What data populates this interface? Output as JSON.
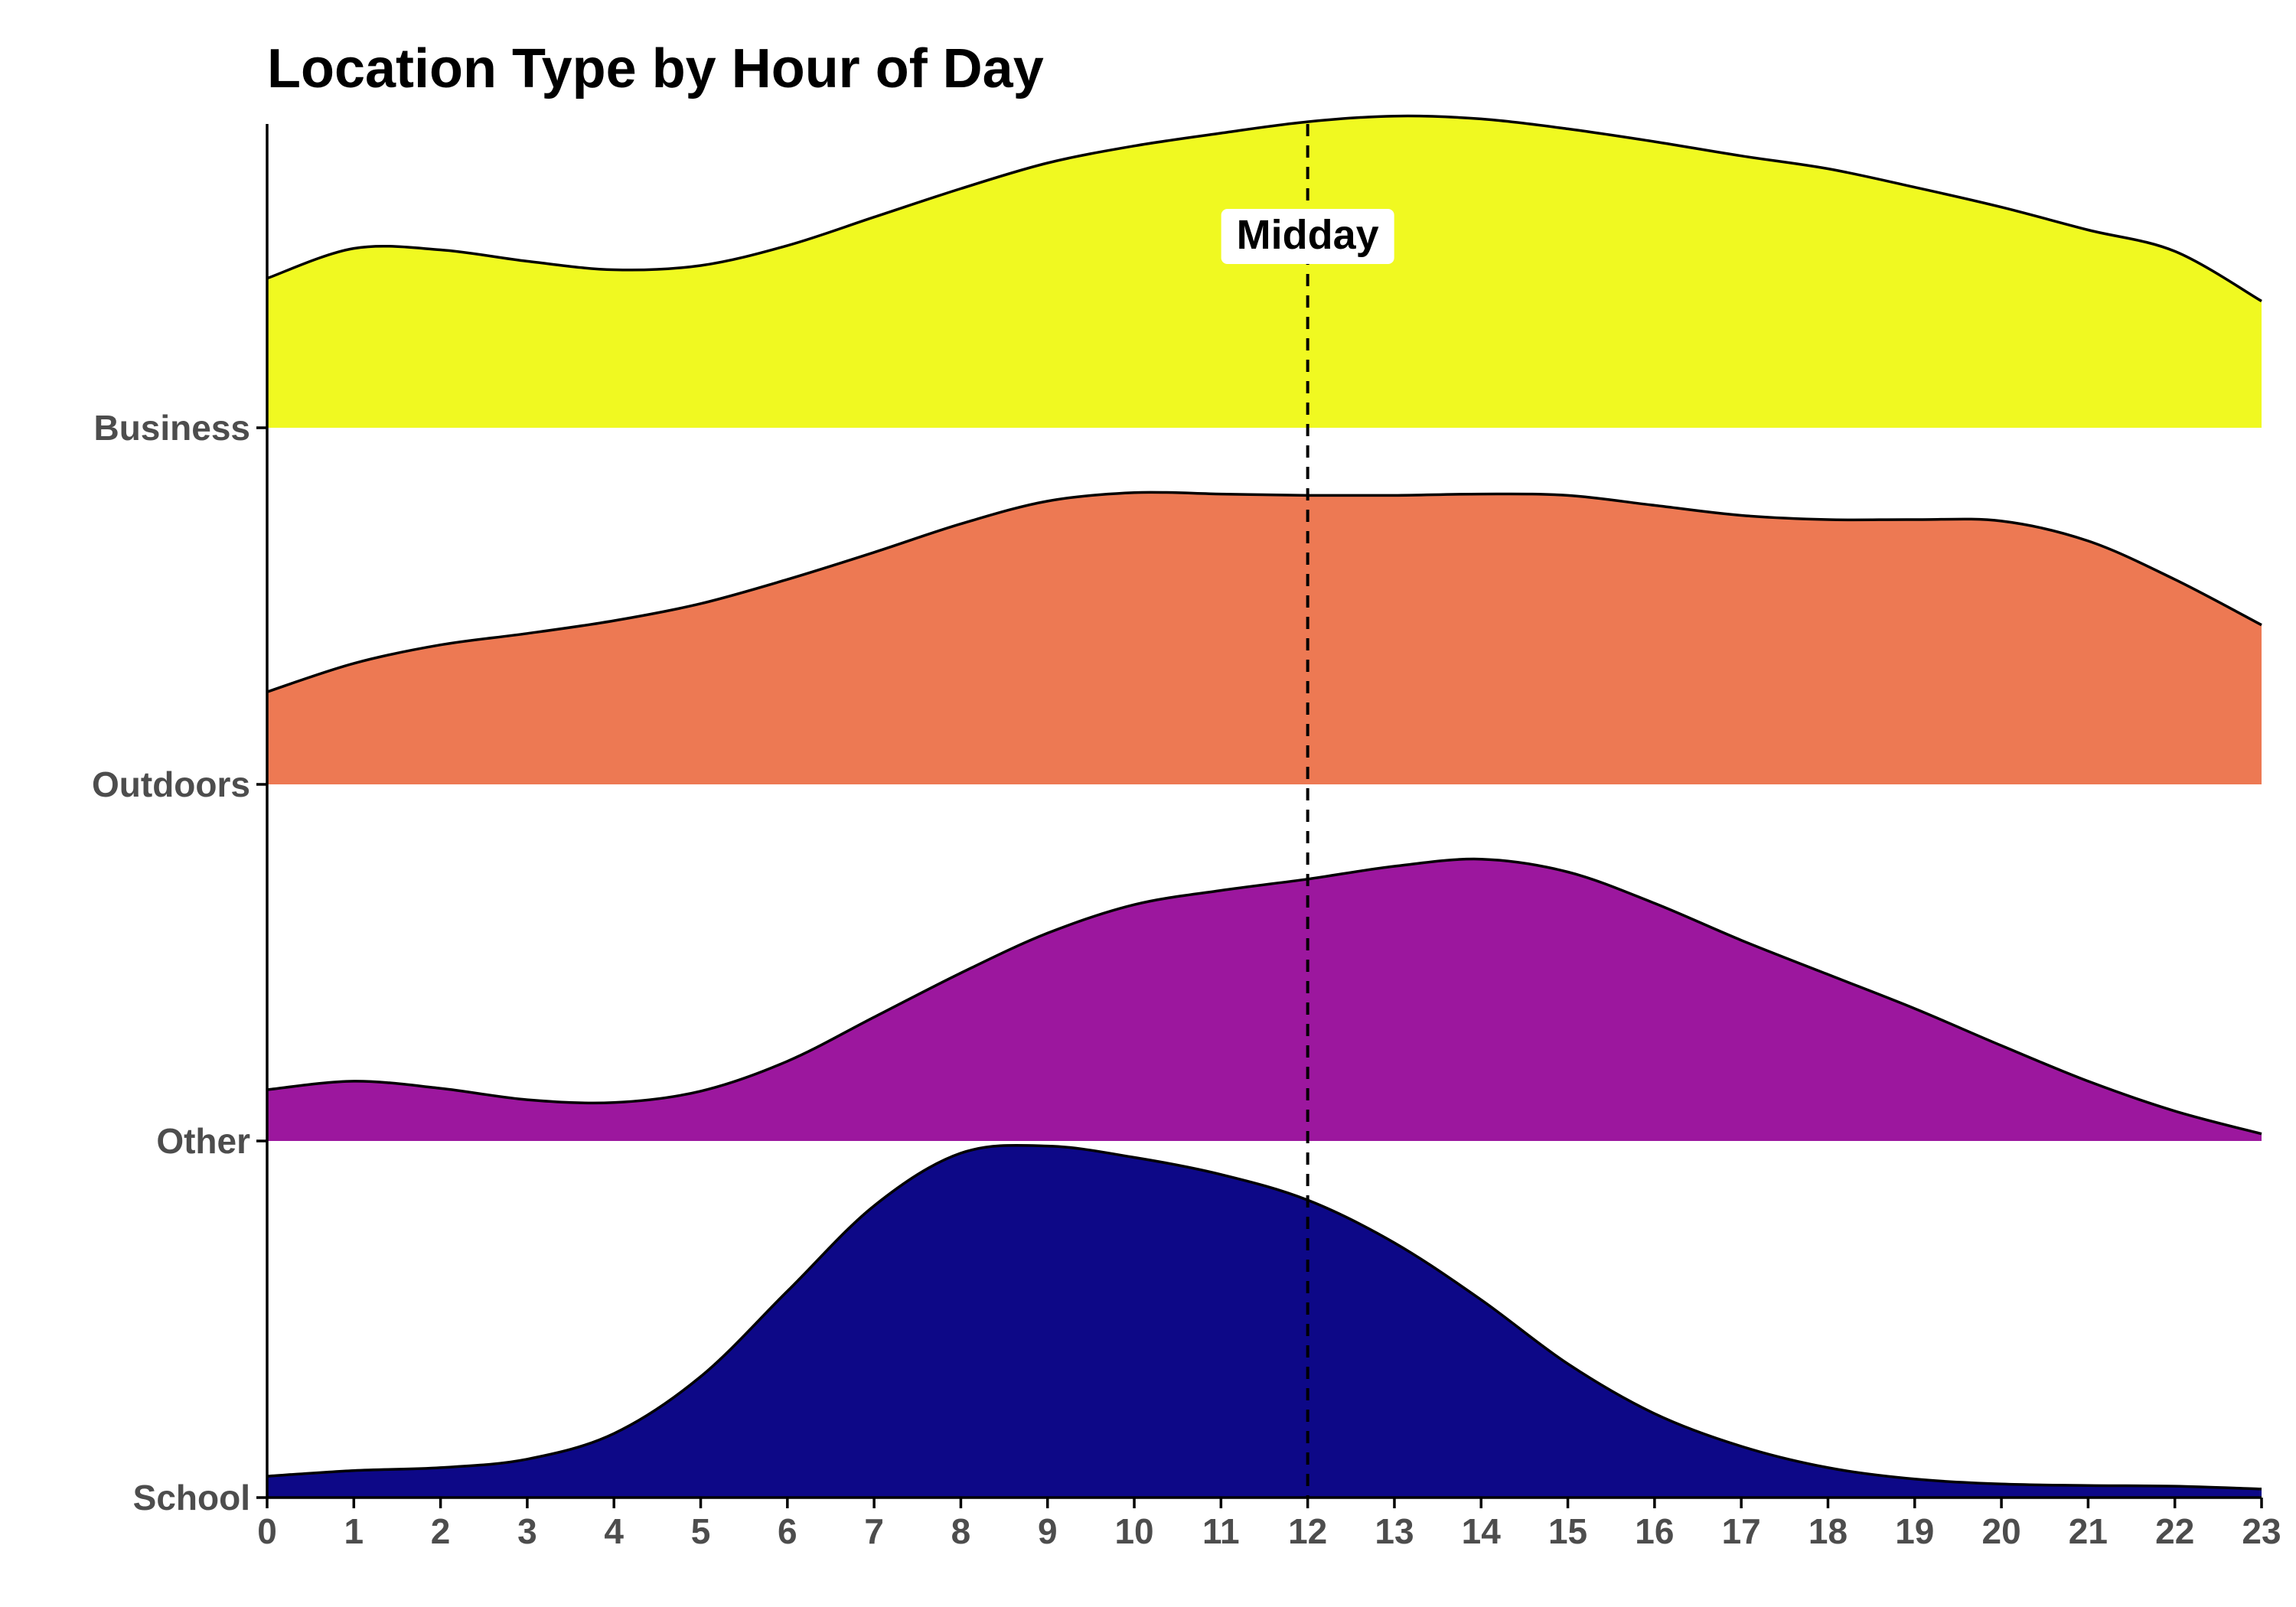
{
  "chart_data": {
    "type": "area",
    "subtype": "ridgeline",
    "title": "Location Type by Hour of Day",
    "xlabel": "",
    "ylabel": "",
    "xlim": [
      0,
      23
    ],
    "x_ticks": [
      0,
      1,
      2,
      3,
      4,
      5,
      6,
      7,
      8,
      9,
      10,
      11,
      12,
      13,
      14,
      15,
      16,
      17,
      18,
      19,
      20,
      21,
      22,
      23
    ],
    "grid": false,
    "legend": "none",
    "x": [
      0,
      1,
      2,
      3,
      4,
      5,
      6,
      7,
      8,
      9,
      10,
      11,
      12,
      13,
      14,
      15,
      16,
      17,
      18,
      19,
      20,
      21,
      22,
      23
    ],
    "series": [
      {
        "name": "School",
        "color": "#0d0887",
        "values": [
          0.15,
          0.19,
          0.21,
          0.27,
          0.45,
          0.85,
          1.45,
          2.05,
          2.42,
          2.47,
          2.39,
          2.27,
          2.09,
          1.79,
          1.39,
          0.94,
          0.59,
          0.36,
          0.21,
          0.13,
          0.095,
          0.085,
          0.08,
          0.06
        ]
      },
      {
        "name": "Other",
        "color": "#9c179e",
        "values": [
          0.36,
          0.42,
          0.37,
          0.29,
          0.27,
          0.35,
          0.56,
          0.87,
          1.18,
          1.46,
          1.66,
          1.76,
          1.84,
          1.93,
          1.98,
          1.89,
          1.67,
          1.41,
          1.17,
          0.93,
          0.67,
          0.42,
          0.21,
          0.05
        ]
      },
      {
        "name": "Outdoors",
        "color": "#ed7953",
        "values": [
          0.65,
          0.85,
          0.98,
          1.06,
          1.15,
          1.27,
          1.44,
          1.63,
          1.83,
          1.99,
          2.05,
          2.04,
          2.03,
          2.03,
          2.04,
          2.03,
          1.96,
          1.89,
          1.86,
          1.86,
          1.85,
          1.71,
          1.44,
          1.12
        ]
      },
      {
        "name": "Business",
        "color": "#f0f921",
        "values": [
          1.05,
          1.26,
          1.25,
          1.17,
          1.11,
          1.14,
          1.28,
          1.48,
          1.68,
          1.86,
          1.98,
          2.07,
          2.15,
          2.19,
          2.17,
          2.1,
          2.01,
          1.91,
          1.82,
          1.69,
          1.55,
          1.39,
          1.24,
          0.89
        ]
      }
    ],
    "reference_lines": [
      {
        "axis": "x",
        "value": 12,
        "style": "dashed",
        "color": "#000000",
        "label": "Midday"
      }
    ]
  }
}
